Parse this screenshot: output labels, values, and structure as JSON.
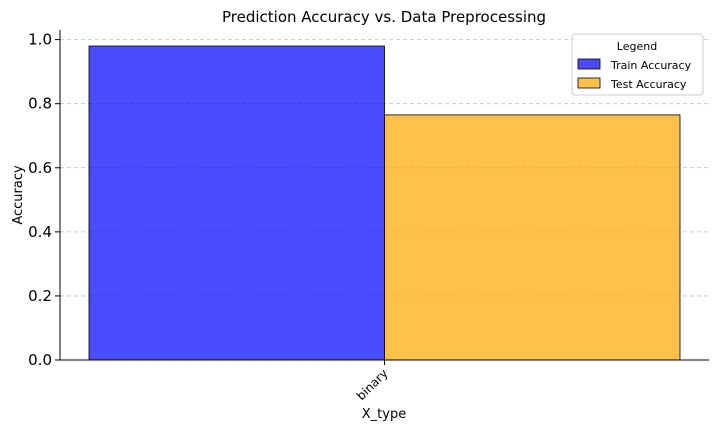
{
  "chart_data": {
    "type": "bar",
    "title": "Prediction Accuracy vs. Data Preprocessing",
    "xlabel": "X_type",
    "ylabel": "Accuracy",
    "categories": [
      "binary"
    ],
    "series": [
      {
        "name": "Train Accuracy",
        "values": [
          0.98
        ],
        "color": "#0000ff",
        "opacity": 0.7
      },
      {
        "name": "Test Accuracy",
        "values": [
          0.765
        ],
        "color": "#ffa500",
        "opacity": 0.7
      }
    ],
    "ylim": [
      0,
      1.03
    ],
    "yticks": [
      0.0,
      0.2,
      0.4,
      0.6,
      0.8,
      1.0
    ],
    "ytick_labels": [
      "0.0",
      "0.2",
      "0.4",
      "0.6",
      "0.8",
      "1.0"
    ],
    "grid": "y-dashed",
    "legend": {
      "title": "Legend",
      "placement": "top-right"
    }
  }
}
